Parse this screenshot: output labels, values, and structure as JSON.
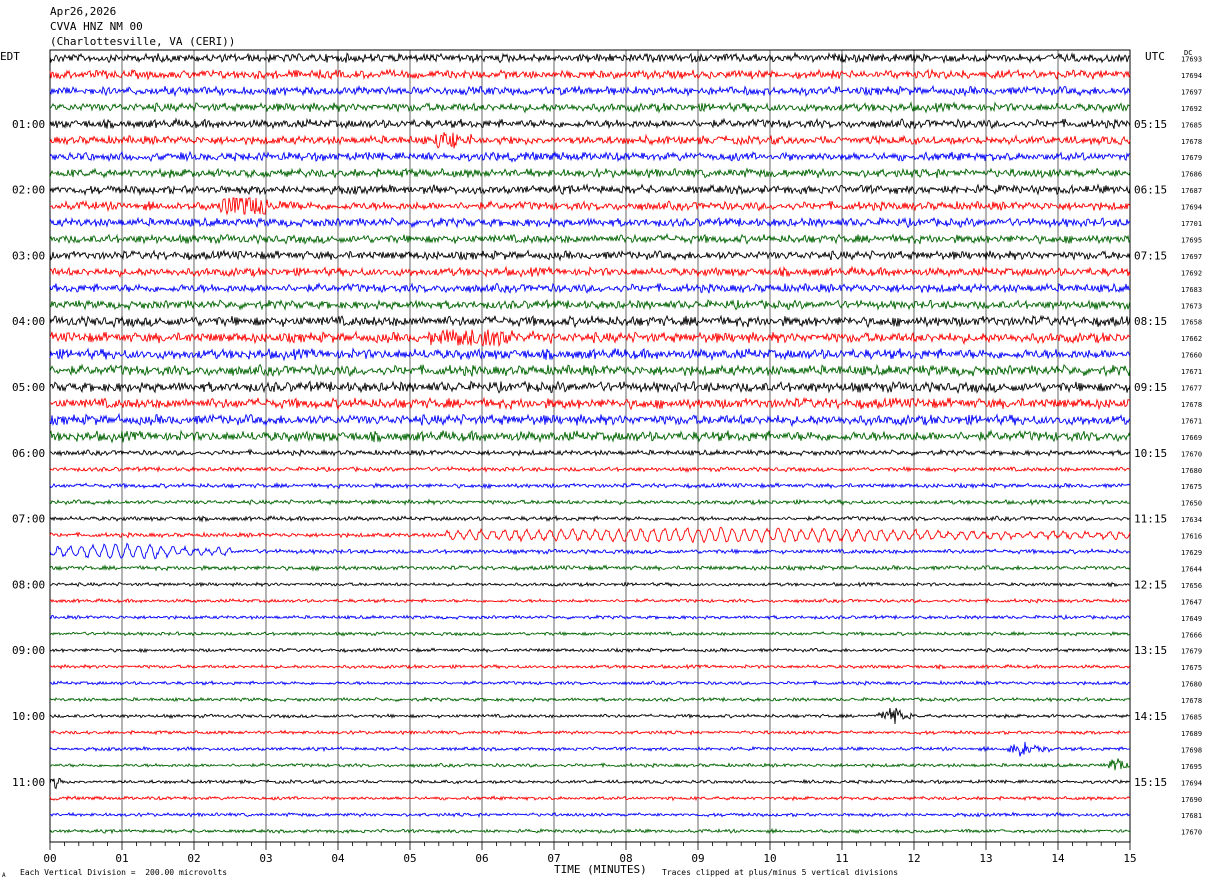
{
  "header": {
    "date": "Apr26,2026",
    "station": "CVVA HNZ NM 00",
    "location": "(Charlottesville, VA (CERI))"
  },
  "left_tz": "EDT",
  "right_tz": "UTC",
  "dc_label": "DC",
  "footer": {
    "scale_note": "Each Vertical Division =  200.00 microvolts",
    "clip_note": "Traces clipped at plus/minus 5 vertical divisions",
    "corner_mark": "A"
  },
  "colors": {
    "trace_cycle": [
      "#000000",
      "#ff0000",
      "#0000ff",
      "#006400"
    ],
    "grid": "#000000",
    "background": "#ffffff"
  },
  "chart_data": {
    "type": "line",
    "title": "",
    "xlabel": "TIME (MINUTES)",
    "xlim": [
      0,
      15
    ],
    "x_ticks": [
      "00",
      "01",
      "02",
      "03",
      "04",
      "05",
      "06",
      "07",
      "08",
      "09",
      "10",
      "11",
      "12",
      "13",
      "14",
      "15"
    ],
    "left_hour_labels": [
      "01:00",
      "02:00",
      "03:00",
      "04:00",
      "05:00",
      "06:00",
      "07:00",
      "08:00",
      "09:00",
      "10:00",
      "11:00"
    ],
    "right_hour_labels": [
      "05:15",
      "06:15",
      "07:15",
      "08:15",
      "09:15",
      "10:15",
      "11:15",
      "12:15",
      "13:15",
      "14:15",
      "15:15"
    ],
    "row_dc_offsets": [
      "17693",
      "17694",
      "17697",
      "17692",
      "17685",
      "17678",
      "17679",
      "17686",
      "17687",
      "17694",
      "17701",
      "17695",
      "17697",
      "17692",
      "17683",
      "17673",
      "17658",
      "17662",
      "17660",
      "17671",
      "17677",
      "17678",
      "17671",
      "17669",
      "17670",
      "17680",
      "17675",
      "17650",
      "17634",
      "17616",
      "17629",
      "17644",
      "17656",
      "17647",
      "17649",
      "17666",
      "17679",
      "17675",
      "17680",
      "17678",
      "17685",
      "17689",
      "17698",
      "17695",
      "17694",
      "17690",
      "17681",
      "17670"
    ],
    "row_amplitude": [
      5,
      5,
      5,
      5,
      5,
      5,
      5,
      5,
      5,
      5,
      5,
      5,
      5,
      5,
      5,
      5,
      6,
      6,
      6,
      6,
      6,
      6,
      6,
      6,
      3,
      2.5,
      2.5,
      2.5,
      2.5,
      2.5,
      2.5,
      2.5,
      2,
      2,
      2,
      2,
      2,
      2,
      2,
      2,
      2,
      2,
      2,
      2,
      2,
      2,
      2,
      2
    ],
    "events": [
      {
        "row": 5,
        "start_min": 5.3,
        "end_min": 5.9,
        "amp": 9
      },
      {
        "row": 9,
        "start_min": 2.3,
        "end_min": 3.4,
        "amp": 12
      },
      {
        "row": 17,
        "start_min": 5.2,
        "end_min": 7.0,
        "amp": 10
      },
      {
        "row": 29,
        "start_min": 5.5,
        "end_min": 15.0,
        "amp": 6,
        "wavy": true
      },
      {
        "row": 30,
        "start_min": 0.0,
        "end_min": 2.5,
        "amp": 6,
        "wavy": true
      },
      {
        "row": 40,
        "start_min": 11.5,
        "end_min": 12.0,
        "amp": 9
      },
      {
        "row": 42,
        "start_min": 13.3,
        "end_min": 13.9,
        "amp": 8
      },
      {
        "row": 43,
        "start_min": 14.7,
        "end_min": 15.0,
        "amp": 9
      },
      {
        "row": 44,
        "start_min": 0.0,
        "end_min": 0.2,
        "amp": 7
      }
    ]
  }
}
